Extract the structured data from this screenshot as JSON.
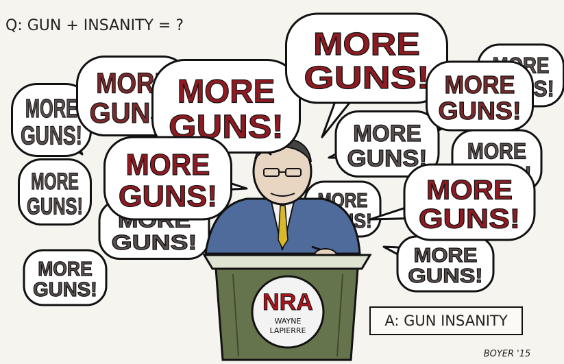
{
  "question": "Q: GUN + INSANITY = ?",
  "bubbles": [
    {
      "line1": "MORE",
      "line2": "GUNS!"
    },
    {
      "line1": "MORE",
      "line2": "GUNS!"
    },
    {
      "line1": "MORE",
      "line2": "GUNS!"
    },
    {
      "line1": "MORE",
      "line2": "GUNS!"
    },
    {
      "line1": "MORE",
      "line2": "GUNS!"
    },
    {
      "line1": "MORE",
      "line2": "GUNS!"
    },
    {
      "line1": "MORE",
      "line2": "GUNS!"
    },
    {
      "line1": "MORE",
      "line2": "GUNS!"
    },
    {
      "line1": "MORE",
      "line2": "GUNS!"
    },
    {
      "line1": "MORE",
      "line2": "GUNS!"
    },
    {
      "line1": "MORE",
      "line2": "GUNS!"
    },
    {
      "line1": "MORE",
      "line2": "GUNS!"
    },
    {
      "line1": "MORE",
      "line2": "GUNS!"
    },
    {
      "line1": "MORE",
      "line2": "GUNS!"
    },
    {
      "line1": "MORE",
      "line2": "GUNS!"
    }
  ],
  "podium": {
    "logo": "NRA",
    "name_line1": "WAYNE",
    "name_line2": "LAPIERRE"
  },
  "answer": "A: GUN INSANITY",
  "signature": "BOYER '15"
}
